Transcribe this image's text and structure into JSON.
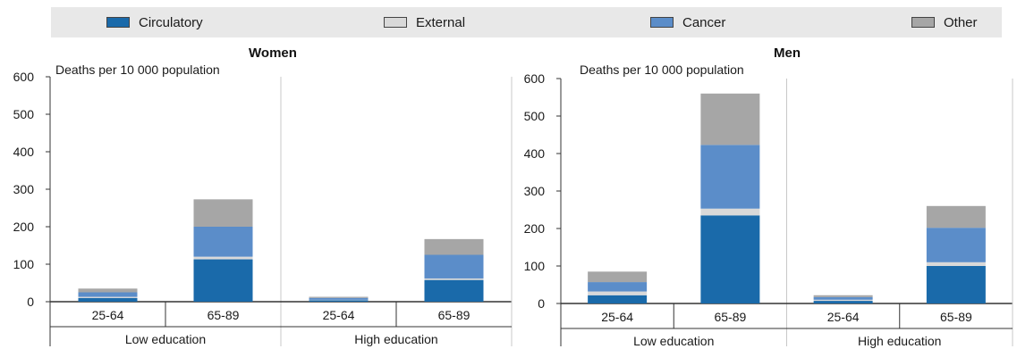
{
  "legend": {
    "items": [
      {
        "label": "Circulatory",
        "color": "#1a6aaa"
      },
      {
        "label": "External",
        "color": "#d9d9d9"
      },
      {
        "label": "Cancer",
        "color": "#5b8dc9"
      },
      {
        "label": "Other",
        "color": "#a6a6a6"
      }
    ]
  },
  "chart_data": [
    {
      "type": "bar",
      "stacked": true,
      "title": "Women",
      "ylabel": "Deaths per 10 000 population",
      "ylim": [
        0,
        600
      ],
      "yticks": [
        "0",
        "100",
        "200",
        "300",
        "400",
        "500",
        "600"
      ],
      "categories": [
        "25-64",
        "65-89",
        "25-64",
        "65-89"
      ],
      "groups": [
        "Low education",
        "High education"
      ],
      "series": [
        {
          "name": "Circulatory",
          "values": [
            10,
            113,
            4,
            58
          ]
        },
        {
          "name": "External",
          "values": [
            3,
            7,
            1,
            4
          ]
        },
        {
          "name": "Cancer",
          "values": [
            12,
            80,
            5,
            63
          ]
        },
        {
          "name": "Other",
          "values": [
            10,
            73,
            3,
            42
          ]
        }
      ]
    },
    {
      "type": "bar",
      "stacked": true,
      "title": "Men",
      "ylabel": "Deaths per 10 000 population",
      "ylim": [
        0,
        600
      ],
      "yticks": [
        "0",
        "100",
        "200",
        "300",
        "400",
        "500",
        "600"
      ],
      "categories": [
        "25-64",
        "65-89",
        "25-64",
        "65-89"
      ],
      "groups": [
        "Low education",
        "High education"
      ],
      "series": [
        {
          "name": "Circulatory",
          "values": [
            22,
            235,
            7,
            100
          ]
        },
        {
          "name": "External",
          "values": [
            10,
            18,
            3,
            10
          ]
        },
        {
          "name": "Cancer",
          "values": [
            25,
            170,
            7,
            92
          ]
        },
        {
          "name": "Other",
          "values": [
            28,
            137,
            5,
            58
          ]
        }
      ]
    }
  ]
}
